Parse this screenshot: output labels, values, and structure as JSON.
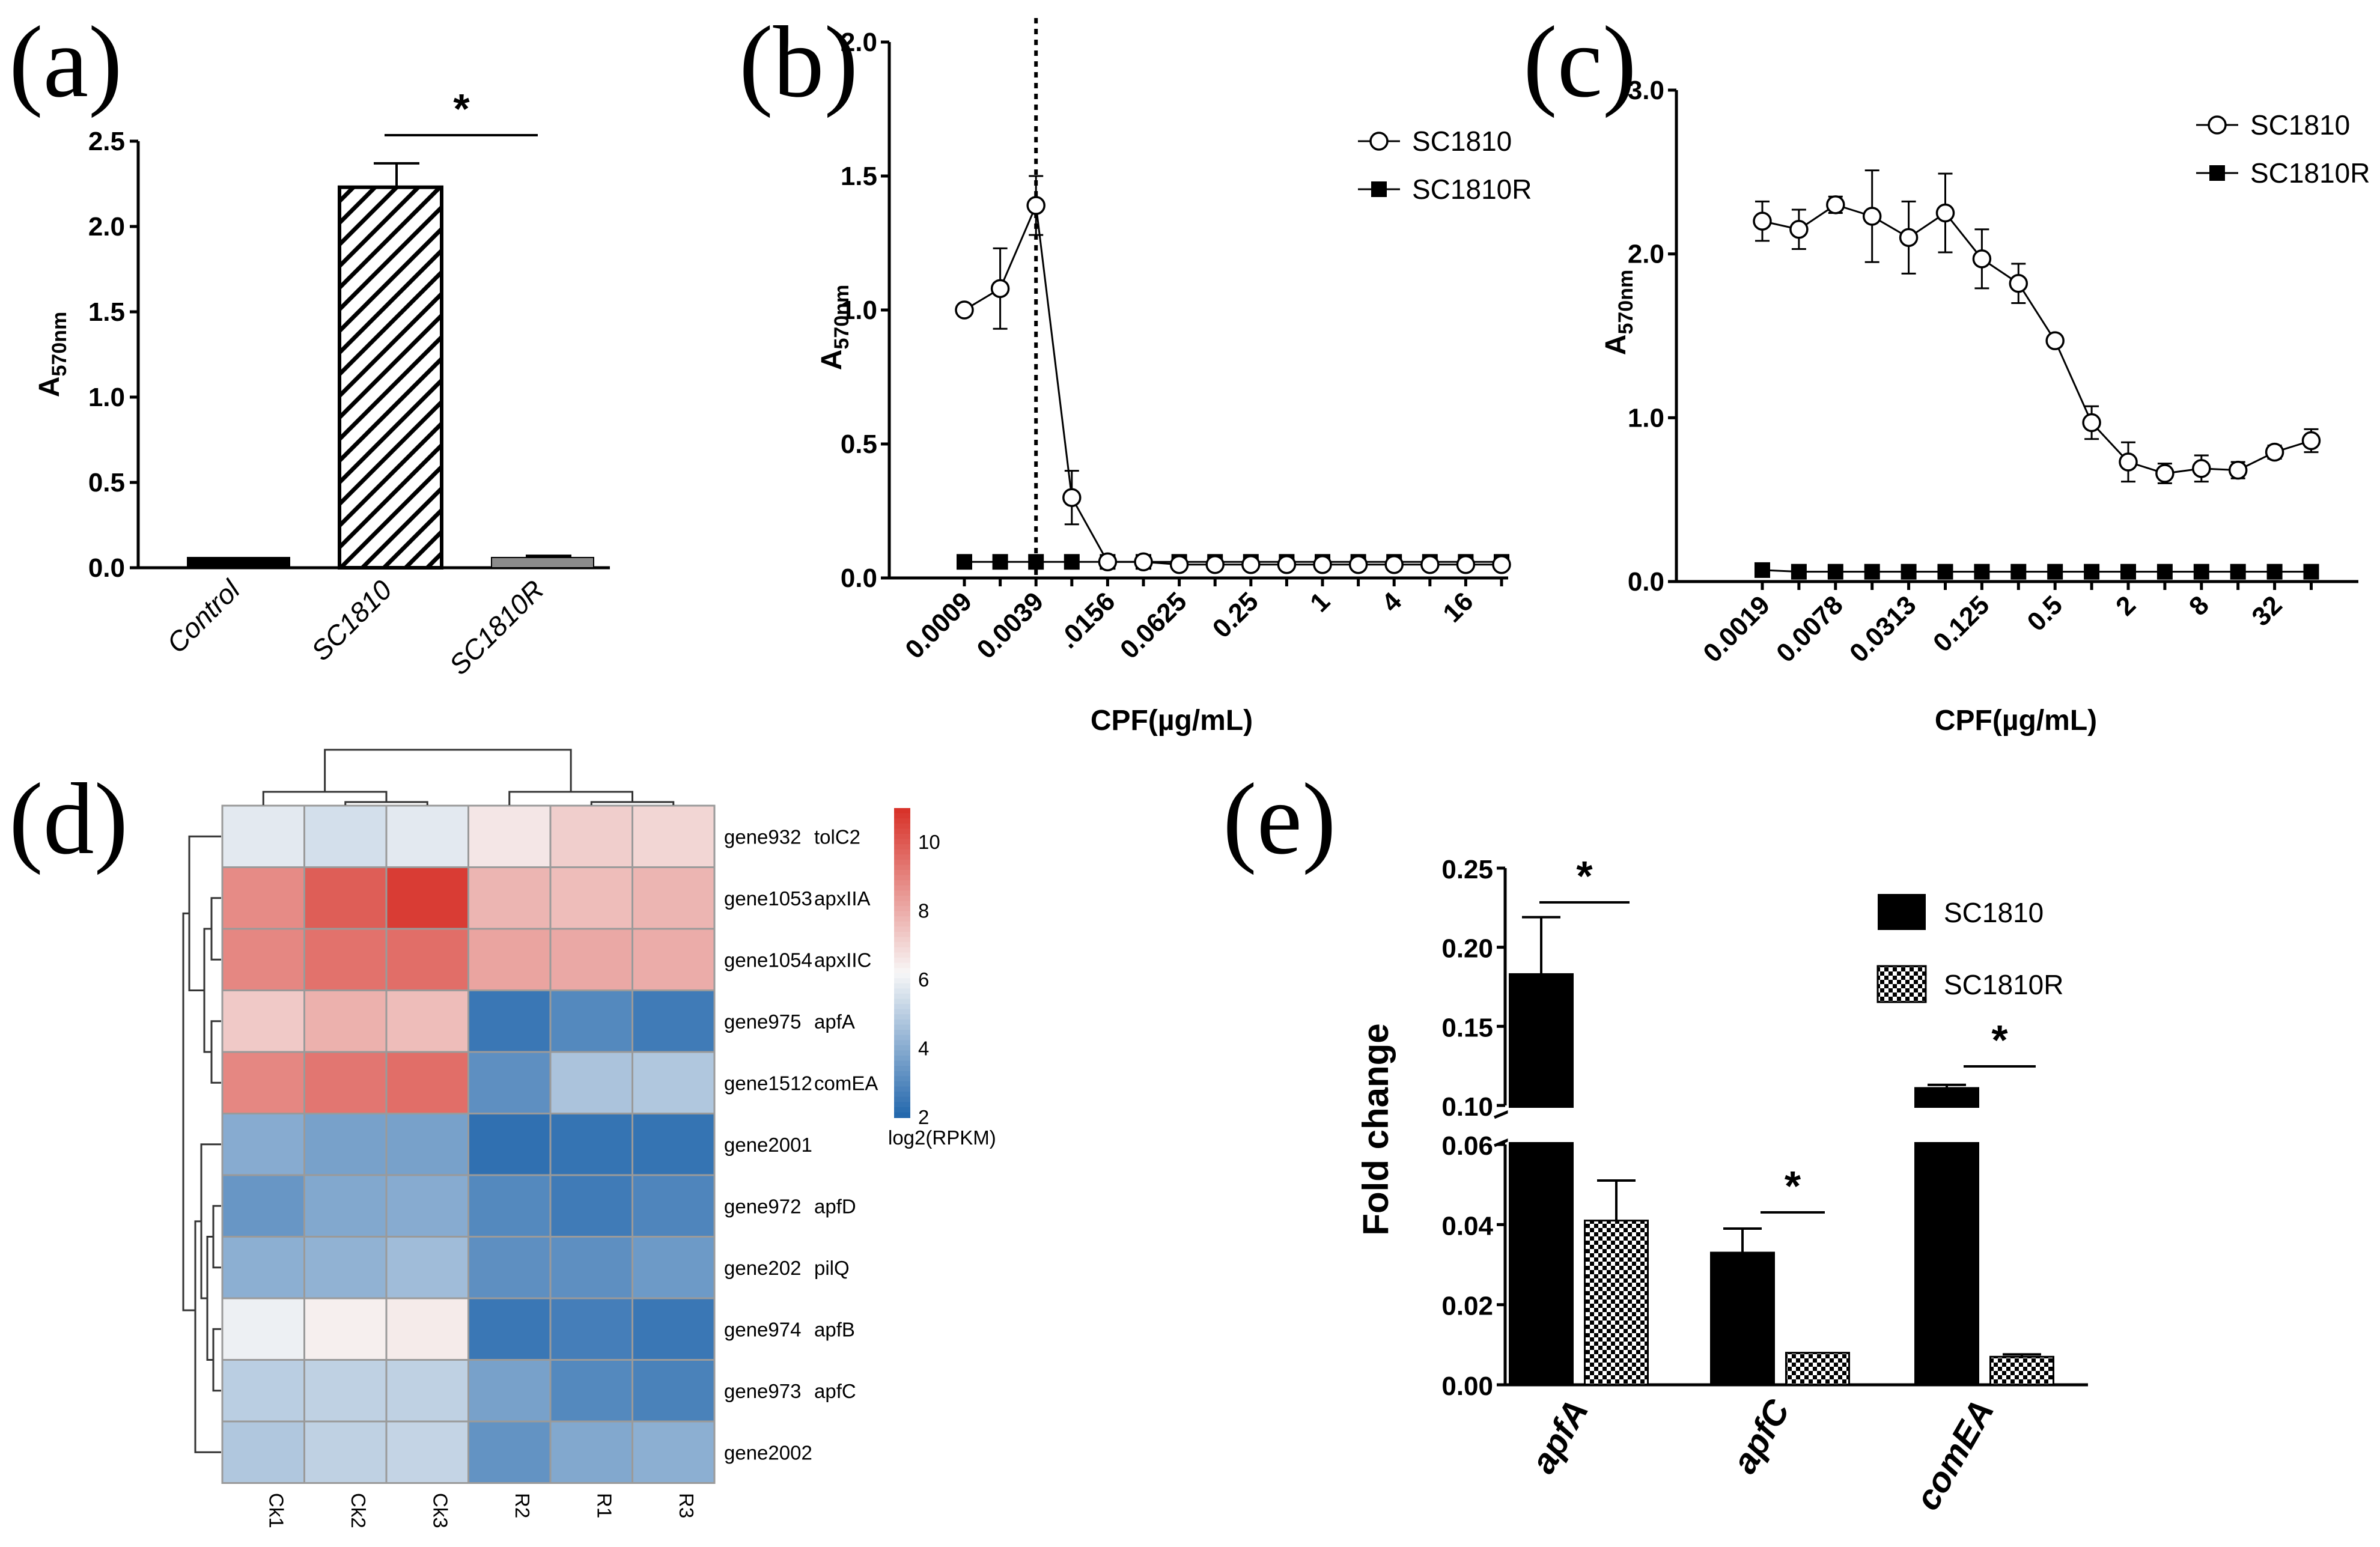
{
  "panel_labels": [
    "(a)",
    "(b)",
    "(c)",
    "(d)",
    "(e)"
  ],
  "chart_data": [
    {
      "panel": "(a)",
      "type": "bar",
      "ylabel_main": "A",
      "ylabel_sub": "570nm",
      "ylim": [
        0,
        2.5
      ],
      "yticks": [
        "0.0",
        "0.5",
        "1.0",
        "1.5",
        "2.0",
        "2.5"
      ],
      "categories": [
        "Control",
        "SC1810",
        "SC1810R"
      ],
      "values": [
        0.06,
        2.23,
        0.06
      ],
      "errors": [
        0.0,
        0.14,
        0.01
      ],
      "colors": [
        "#000000",
        "hatched",
        "#8c8c8c"
      ],
      "annotation": "*"
    },
    {
      "panel": "(b)",
      "type": "line",
      "ylabel_main": "A",
      "ylabel_sub": "570nm",
      "xlabel": "CPF(µg/mL)",
      "ylim": [
        0,
        2.0
      ],
      "yticks": [
        "0.0",
        "0.5",
        "1.0",
        "1.5",
        "2.0"
      ],
      "xticklabels": [
        "0.0009",
        "0.0039",
        ".0156",
        "0.0625",
        "0.25",
        "1",
        "4",
        "16"
      ],
      "x_log2": [
        -10,
        -9,
        -8,
        -7,
        -6,
        -5,
        -4,
        -3,
        -2,
        -1,
        0,
        1,
        2,
        3,
        4,
        5
      ],
      "series": [
        {
          "name": "SC1810",
          "marker": "open-circle",
          "values": [
            1.0,
            1.08,
            1.39,
            0.3,
            0.06,
            0.06,
            0.05,
            0.05,
            0.05,
            0.05,
            0.05,
            0.05,
            0.05,
            0.05,
            0.05,
            0.05
          ],
          "errors": [
            0.0,
            0.15,
            0.11,
            0.1,
            0.0,
            0.02,
            0.02,
            0.02,
            0.02,
            0.02,
            0.02,
            0.02,
            0.02,
            0.02,
            0.02,
            0.02
          ]
        },
        {
          "name": "SC1810R",
          "marker": "filled-square",
          "values": [
            0.06,
            0.06,
            0.06,
            0.06,
            0.06,
            0.06,
            0.06,
            0.06,
            0.06,
            0.06,
            0.06,
            0.06,
            0.06,
            0.06,
            0.06,
            0.06
          ],
          "errors": []
        }
      ],
      "vline_x_log2": -8
    },
    {
      "panel": "(c)",
      "type": "line",
      "ylabel_main": "A",
      "ylabel_sub": "570nm",
      "xlabel": "CPF(µg/mL)",
      "ylim": [
        0,
        3.0
      ],
      "yticks": [
        "0.0",
        "1.0",
        "2.0",
        "3.0"
      ],
      "xticklabels": [
        "0.0019",
        "0.0078",
        "0.0313",
        "0.125",
        "0.5",
        "2",
        "8",
        "32"
      ],
      "x_log2": [
        -10,
        -9,
        -8,
        -7,
        -6,
        -5,
        -4,
        -3,
        -2,
        -1,
        0,
        1,
        2,
        3,
        4,
        5
      ],
      "series": [
        {
          "name": "SC1810",
          "marker": "open-circle",
          "values": [
            2.2,
            2.15,
            2.3,
            2.23,
            2.1,
            2.25,
            1.97,
            1.82,
            1.47,
            0.97,
            0.73,
            0.66,
            0.69,
            0.68,
            0.79,
            0.86
          ],
          "errors": [
            0.12,
            0.12,
            0.05,
            0.28,
            0.22,
            0.24,
            0.18,
            0.12,
            0.0,
            0.1,
            0.12,
            0.06,
            0.08,
            0.05,
            0.04,
            0.07
          ]
        },
        {
          "name": "SC1810R",
          "marker": "filled-square",
          "values": [
            0.07,
            0.06,
            0.06,
            0.06,
            0.06,
            0.06,
            0.06,
            0.06,
            0.06,
            0.06,
            0.06,
            0.06,
            0.06,
            0.06,
            0.06,
            0.06
          ],
          "errors": []
        }
      ]
    },
    {
      "panel": "(d)",
      "type": "heatmap",
      "columns": [
        "Ck1",
        "Ck2",
        "Ck3",
        "R2",
        "R1",
        "R3"
      ],
      "rows": [
        {
          "gene": "gene932",
          "name": "tolC2",
          "values": [
            5.8,
            5.5,
            5.8,
            6.6,
            7.2,
            7.0
          ]
        },
        {
          "gene": "gene1053",
          "name": "apxIIA",
          "values": [
            8.8,
            9.9,
            10.7,
            7.8,
            7.6,
            7.8
          ]
        },
        {
          "gene": "gene1054",
          "name": "apxIIC",
          "values": [
            8.9,
            9.4,
            9.5,
            8.2,
            8.1,
            8.0
          ]
        },
        {
          "gene": "gene975",
          "name": "apfA",
          "values": [
            7.3,
            7.9,
            7.6,
            2.5,
            3.0,
            2.6
          ]
        },
        {
          "gene": "gene1512",
          "name": "comEA",
          "values": [
            8.9,
            9.3,
            9.5,
            3.2,
            4.7,
            4.8
          ]
        },
        {
          "gene": "gene2001",
          "name": "",
          "values": [
            4.0,
            3.7,
            3.7,
            2.3,
            2.4,
            2.4
          ]
        },
        {
          "gene": "gene972",
          "name": "apfD",
          "values": [
            3.4,
            3.9,
            4.0,
            3.0,
            2.6,
            2.9
          ]
        },
        {
          "gene": "gene202",
          "name": "pilQ",
          "values": [
            4.1,
            4.2,
            4.5,
            3.2,
            3.2,
            3.5
          ]
        },
        {
          "gene": "gene974",
          "name": "apfB",
          "values": [
            6.0,
            6.4,
            6.5,
            2.5,
            2.7,
            2.5
          ]
        },
        {
          "gene": "gene973",
          "name": "apfC",
          "values": [
            5.0,
            5.1,
            5.1,
            3.7,
            3.0,
            2.8
          ]
        },
        {
          "gene": "gene2002",
          "name": "",
          "values": [
            4.8,
            5.1,
            5.2,
            3.3,
            3.9,
            4.1
          ]
        }
      ],
      "colorbar": {
        "min": 2,
        "max": 11,
        "ticks": [
          "2",
          "4",
          "6",
          "8",
          "10"
        ],
        "label": "log2(RPKM)"
      },
      "colors": {
        "low": "#2166ac",
        "mid": "#f7f7f7",
        "high": "#d7302b"
      }
    },
    {
      "panel": "(e)",
      "type": "bar",
      "ylabel": "Fold change",
      "yticks_upper": [
        "0.10",
        "0.15",
        "0.20",
        "0.25"
      ],
      "yticks_lower": [
        "0.00",
        "0.02",
        "0.04",
        "0.06"
      ],
      "axis_break": [
        0.06,
        0.1
      ],
      "categories": [
        "apfA",
        "apfC",
        "comEA"
      ],
      "series": [
        {
          "name": "SC1810",
          "fill": "black",
          "values": [
            0.183,
            0.033,
            0.111
          ],
          "errors": [
            0.036,
            0.006,
            0.002
          ]
        },
        {
          "name": "SC1810R",
          "fill": "checkered",
          "values": [
            0.041,
            0.008,
            0.007
          ],
          "errors": [
            0.01,
            0.0,
            0.0006
          ]
        }
      ],
      "annotations": [
        "*",
        "*",
        "*"
      ]
    }
  ]
}
